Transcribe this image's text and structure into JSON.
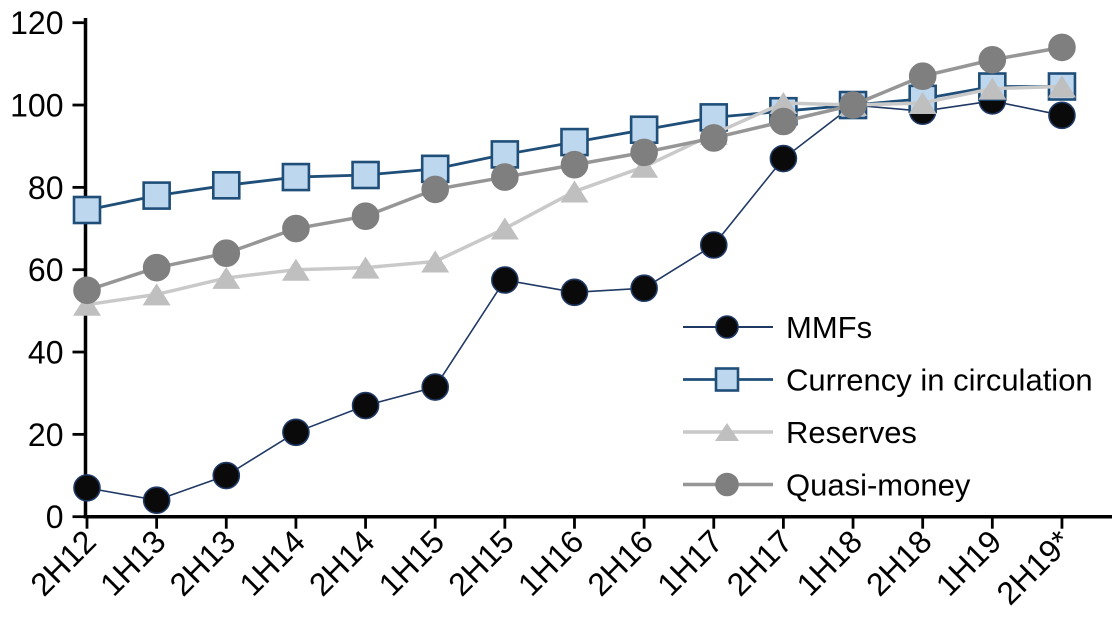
{
  "chart_data": {
    "type": "line",
    "title": "",
    "xlabel": "",
    "ylabel": "",
    "background_color": "#ffffff",
    "axis_color": "#000000",
    "grid": false,
    "ylim": [
      0,
      120
    ],
    "yticks": [
      0,
      20,
      40,
      60,
      80,
      100,
      120
    ],
    "ytick_labels": [
      "0",
      "20",
      "40",
      "60",
      "80",
      "100",
      "120"
    ],
    "categories": [
      "2H12",
      "1H13",
      "2H13",
      "1H14",
      "2H14",
      "1H15",
      "2H15",
      "1H16",
      "2H16",
      "1H17",
      "2H17",
      "1H18",
      "2H18",
      "1H19",
      "2H19*"
    ],
    "legend_position": "inside-right",
    "series": [
      {
        "name": "MMFs",
        "marker": "circle",
        "marker_fill": "#0a0a0a",
        "marker_edge": "#1f3864",
        "line_color": "#1f3864",
        "line_width": 1.6,
        "values": [
          7,
          4,
          10,
          20.5,
          27,
          31.5,
          57.5,
          54.5,
          55.5,
          66,
          87,
          100,
          98.5,
          101,
          97.5
        ]
      },
      {
        "name": "Currency in circulation",
        "marker": "square",
        "marker_fill": "#bdd7ee",
        "marker_edge": "#1f4e79",
        "line_color": "#1f4e79",
        "line_width": 2.8,
        "values": [
          74.5,
          78,
          80.5,
          82.5,
          83,
          84.5,
          88,
          91,
          94,
          97,
          98.5,
          100,
          101.5,
          104.5,
          104.5
        ]
      },
      {
        "name": "Reserves",
        "marker": "triangle",
        "marker_fill": "#bfbfbf",
        "marker_edge": "#bfbfbf",
        "line_color": "#c9c9c9",
        "line_width": 3.5,
        "values": [
          51.5,
          54,
          58,
          60,
          60.5,
          62,
          70,
          79,
          85,
          93,
          100.5,
          100,
          100.5,
          104,
          104.5
        ]
      },
      {
        "name": "Quasi-money",
        "marker": "circle",
        "marker_fill": "#7f7f7f",
        "marker_edge": "#7f7f7f",
        "line_color": "#969696",
        "line_width": 3.5,
        "values": [
          55,
          60.5,
          64,
          70,
          73,
          79.5,
          82.5,
          85.5,
          88.5,
          92,
          96,
          100,
          107,
          111,
          114
        ]
      }
    ]
  }
}
